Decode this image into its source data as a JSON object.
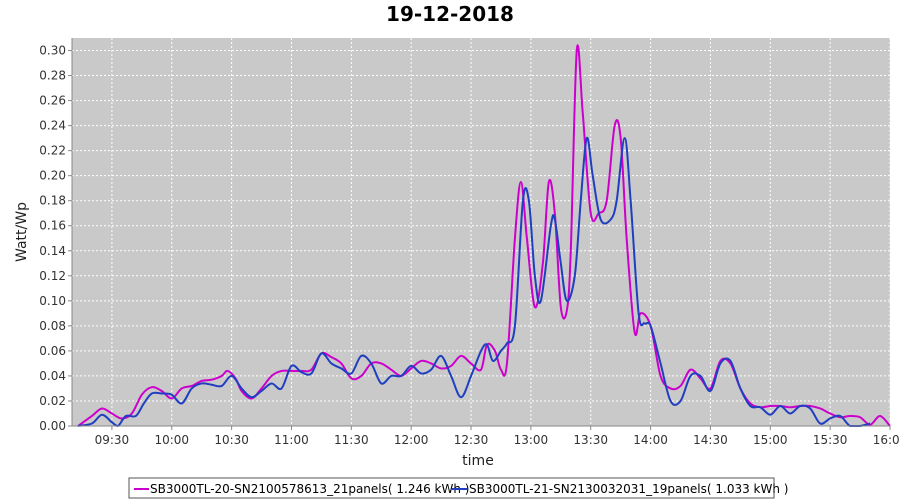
{
  "chart_data": {
    "type": "line",
    "title": "19-12-2018",
    "xlabel": "time",
    "ylabel": "Watt/Wp",
    "xlim": [
      "09:10",
      "16:00"
    ],
    "ylim": [
      0,
      0.31
    ],
    "xticks": [
      "09:30",
      "10:00",
      "10:30",
      "11:00",
      "11:30",
      "12:00",
      "12:30",
      "13:00",
      "13:30",
      "14:00",
      "14:30",
      "15:00",
      "15:30",
      "16:00"
    ],
    "yticks": [
      "0.00",
      "0.02",
      "0.04",
      "0.06",
      "0.08",
      "0.10",
      "0.12",
      "0.14",
      "0.16",
      "0.18",
      "0.20",
      "0.22",
      "0.24",
      "0.26",
      "0.28",
      "0.30"
    ],
    "grid": true,
    "legend_position": "bottom",
    "series": [
      {
        "name": "SB3000TL-20-SN2100578613_21panels( 1.246 kWh )",
        "color": "#cc00cc",
        "points": [
          [
            "09:13",
            0.0
          ],
          [
            "09:20",
            0.008
          ],
          [
            "09:25",
            0.014
          ],
          [
            "09:30",
            0.01
          ],
          [
            "09:35",
            0.006
          ],
          [
            "09:40",
            0.01
          ],
          [
            "09:45",
            0.025
          ],
          [
            "09:50",
            0.031
          ],
          [
            "09:55",
            0.028
          ],
          [
            "10:00",
            0.022
          ],
          [
            "10:05",
            0.03
          ],
          [
            "10:10",
            0.032
          ],
          [
            "10:15",
            0.036
          ],
          [
            "10:20",
            0.037
          ],
          [
            "10:25",
            0.04
          ],
          [
            "10:28",
            0.044
          ],
          [
            "10:32",
            0.038
          ],
          [
            "10:35",
            0.028
          ],
          [
            "10:40",
            0.022
          ],
          [
            "10:45",
            0.03
          ],
          [
            "10:50",
            0.04
          ],
          [
            "10:55",
            0.044
          ],
          [
            "11:00",
            0.044
          ],
          [
            "11:05",
            0.044
          ],
          [
            "11:10",
            0.045
          ],
          [
            "11:15",
            0.058
          ],
          [
            "11:20",
            0.055
          ],
          [
            "11:25",
            0.05
          ],
          [
            "11:30",
            0.038
          ],
          [
            "11:35",
            0.04
          ],
          [
            "11:40",
            0.05
          ],
          [
            "11:45",
            0.05
          ],
          [
            "11:50",
            0.045
          ],
          [
            "11:55",
            0.04
          ],
          [
            "12:00",
            0.046
          ],
          [
            "12:05",
            0.052
          ],
          [
            "12:10",
            0.05
          ],
          [
            "12:15",
            0.046
          ],
          [
            "12:20",
            0.048
          ],
          [
            "12:25",
            0.056
          ],
          [
            "12:30",
            0.05
          ],
          [
            "12:35",
            0.045
          ],
          [
            "12:38",
            0.065
          ],
          [
            "12:42",
            0.06
          ],
          [
            "12:45",
            0.045
          ],
          [
            "12:48",
            0.05
          ],
          [
            "12:52",
            0.15
          ],
          [
            "12:55",
            0.195
          ],
          [
            "12:58",
            0.15
          ],
          [
            "13:02",
            0.095
          ],
          [
            "13:06",
            0.13
          ],
          [
            "13:09",
            0.195
          ],
          [
            "13:12",
            0.17
          ],
          [
            "13:15",
            0.095
          ],
          [
            "13:18",
            0.092
          ],
          [
            "13:20",
            0.14
          ],
          [
            "13:23",
            0.3
          ],
          [
            "13:26",
            0.25
          ],
          [
            "13:30",
            0.17
          ],
          [
            "13:34",
            0.17
          ],
          [
            "13:38",
            0.18
          ],
          [
            "13:42",
            0.24
          ],
          [
            "13:45",
            0.23
          ],
          [
            "13:48",
            0.15
          ],
          [
            "13:52",
            0.075
          ],
          [
            "13:55",
            0.09
          ],
          [
            "14:00",
            0.08
          ],
          [
            "14:05",
            0.04
          ],
          [
            "14:10",
            0.03
          ],
          [
            "14:15",
            0.032
          ],
          [
            "14:20",
            0.045
          ],
          [
            "14:25",
            0.038
          ],
          [
            "14:30",
            0.03
          ],
          [
            "14:35",
            0.052
          ],
          [
            "14:40",
            0.05
          ],
          [
            "14:45",
            0.03
          ],
          [
            "14:50",
            0.018
          ],
          [
            "14:55",
            0.015
          ],
          [
            "15:00",
            0.016
          ],
          [
            "15:05",
            0.016
          ],
          [
            "15:10",
            0.015
          ],
          [
            "15:15",
            0.016
          ],
          [
            "15:20",
            0.016
          ],
          [
            "15:25",
            0.014
          ],
          [
            "15:30",
            0.01
          ],
          [
            "15:35",
            0.007
          ],
          [
            "15:40",
            0.008
          ],
          [
            "15:45",
            0.007
          ],
          [
            "15:50",
            0.001
          ],
          [
            "15:55",
            0.008
          ],
          [
            "16:00",
            0.0
          ]
        ]
      },
      {
        "name": "SB3000TL-21-SN2130032031_19panels( 1.033 kWh )",
        "color": "#1f3fc0",
        "points": [
          [
            "09:13",
            0.0
          ],
          [
            "09:20",
            0.002
          ],
          [
            "09:25",
            0.009
          ],
          [
            "09:30",
            0.003
          ],
          [
            "09:33",
            0.0
          ],
          [
            "09:37",
            0.008
          ],
          [
            "09:42",
            0.008
          ],
          [
            "09:46",
            0.018
          ],
          [
            "09:50",
            0.026
          ],
          [
            "09:55",
            0.026
          ],
          [
            "10:00",
            0.025
          ],
          [
            "10:05",
            0.018
          ],
          [
            "10:10",
            0.03
          ],
          [
            "10:15",
            0.034
          ],
          [
            "10:20",
            0.033
          ],
          [
            "10:25",
            0.032
          ],
          [
            "10:30",
            0.04
          ],
          [
            "10:35",
            0.03
          ],
          [
            "10:40",
            0.023
          ],
          [
            "10:45",
            0.028
          ],
          [
            "10:50",
            0.034
          ],
          [
            "10:55",
            0.03
          ],
          [
            "11:00",
            0.048
          ],
          [
            "11:05",
            0.043
          ],
          [
            "11:10",
            0.042
          ],
          [
            "11:15",
            0.058
          ],
          [
            "11:20",
            0.05
          ],
          [
            "11:25",
            0.046
          ],
          [
            "11:30",
            0.042
          ],
          [
            "11:35",
            0.056
          ],
          [
            "11:40",
            0.05
          ],
          [
            "11:45",
            0.034
          ],
          [
            "11:50",
            0.04
          ],
          [
            "11:55",
            0.04
          ],
          [
            "12:00",
            0.048
          ],
          [
            "12:05",
            0.042
          ],
          [
            "12:10",
            0.045
          ],
          [
            "12:15",
            0.056
          ],
          [
            "12:20",
            0.04
          ],
          [
            "12:25",
            0.023
          ],
          [
            "12:30",
            0.04
          ],
          [
            "12:35",
            0.06
          ],
          [
            "12:38",
            0.065
          ],
          [
            "12:41",
            0.052
          ],
          [
            "12:45",
            0.06
          ],
          [
            "12:48",
            0.066
          ],
          [
            "12:52",
            0.08
          ],
          [
            "12:56",
            0.18
          ],
          [
            "12:59",
            0.18
          ],
          [
            "13:02",
            0.12
          ],
          [
            "13:05",
            0.1
          ],
          [
            "13:10",
            0.16
          ],
          [
            "13:12",
            0.165
          ],
          [
            "13:15",
            0.13
          ],
          [
            "13:18",
            0.1
          ],
          [
            "13:22",
            0.12
          ],
          [
            "13:25",
            0.18
          ],
          [
            "13:28",
            0.23
          ],
          [
            "13:31",
            0.2
          ],
          [
            "13:35",
            0.165
          ],
          [
            "13:40",
            0.165
          ],
          [
            "13:43",
            0.18
          ],
          [
            "13:47",
            0.23
          ],
          [
            "13:50",
            0.18
          ],
          [
            "13:54",
            0.09
          ],
          [
            "13:57",
            0.082
          ],
          [
            "14:00",
            0.08
          ],
          [
            "14:05",
            0.05
          ],
          [
            "14:10",
            0.02
          ],
          [
            "14:15",
            0.02
          ],
          [
            "14:20",
            0.04
          ],
          [
            "14:25",
            0.04
          ],
          [
            "14:30",
            0.028
          ],
          [
            "14:35",
            0.05
          ],
          [
            "14:40",
            0.052
          ],
          [
            "14:45",
            0.03
          ],
          [
            "14:50",
            0.016
          ],
          [
            "14:55",
            0.015
          ],
          [
            "15:00",
            0.009
          ],
          [
            "15:05",
            0.016
          ],
          [
            "15:10",
            0.01
          ],
          [
            "15:15",
            0.016
          ],
          [
            "15:20",
            0.014
          ],
          [
            "15:25",
            0.002
          ],
          [
            "15:30",
            0.006
          ],
          [
            "15:35",
            0.008
          ],
          [
            "15:40",
            0.0
          ],
          [
            "15:45",
            0.0
          ],
          [
            "15:50",
            0.002
          ]
        ]
      }
    ]
  }
}
